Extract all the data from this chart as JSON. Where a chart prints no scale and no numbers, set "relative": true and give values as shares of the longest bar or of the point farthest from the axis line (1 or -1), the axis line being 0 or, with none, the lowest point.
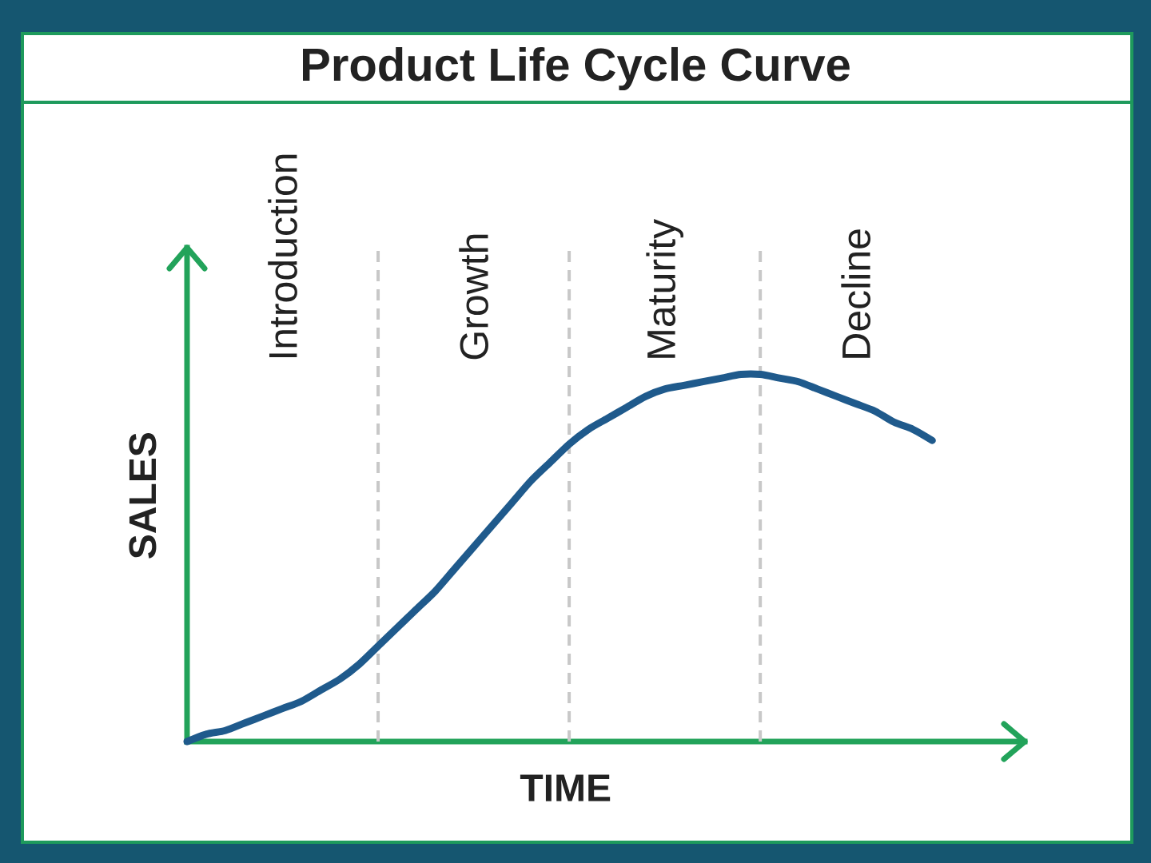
{
  "chart_data": {
    "type": "line",
    "title": "Product Life Cycle Curve",
    "xlabel": "TIME",
    "ylabel": "SALES",
    "relative": true,
    "grid": "x",
    "categories": [
      null,
      null,
      null,
      null,
      null,
      "Introduction",
      null,
      null,
      null,
      null,
      null,
      null,
      null,
      null,
      null,
      "Growth",
      null,
      null,
      null,
      null,
      null,
      null,
      null,
      null,
      null,
      "Maturity",
      null,
      null,
      null,
      null,
      null,
      null,
      null,
      null,
      null,
      "Decline",
      null,
      null,
      null,
      null
    ],
    "series": [
      {
        "color": "#1f5a8c",
        "values": [
          0,
          0.02,
          0.03,
          0.05,
          0.07,
          0.09,
          0.11,
          0.14,
          0.17,
          0.21,
          0.26,
          0.31,
          0.36,
          0.41,
          0.47,
          0.53,
          0.59,
          0.65,
          0.71,
          0.76,
          0.81,
          0.85,
          0.88,
          0.91,
          0.94,
          0.96,
          0.97,
          0.98,
          0.99,
          1,
          1,
          0.99,
          0.98,
          0.96,
          0.94,
          0.92,
          0.9,
          0.87,
          0.85,
          0.82
        ]
      }
    ]
  }
}
